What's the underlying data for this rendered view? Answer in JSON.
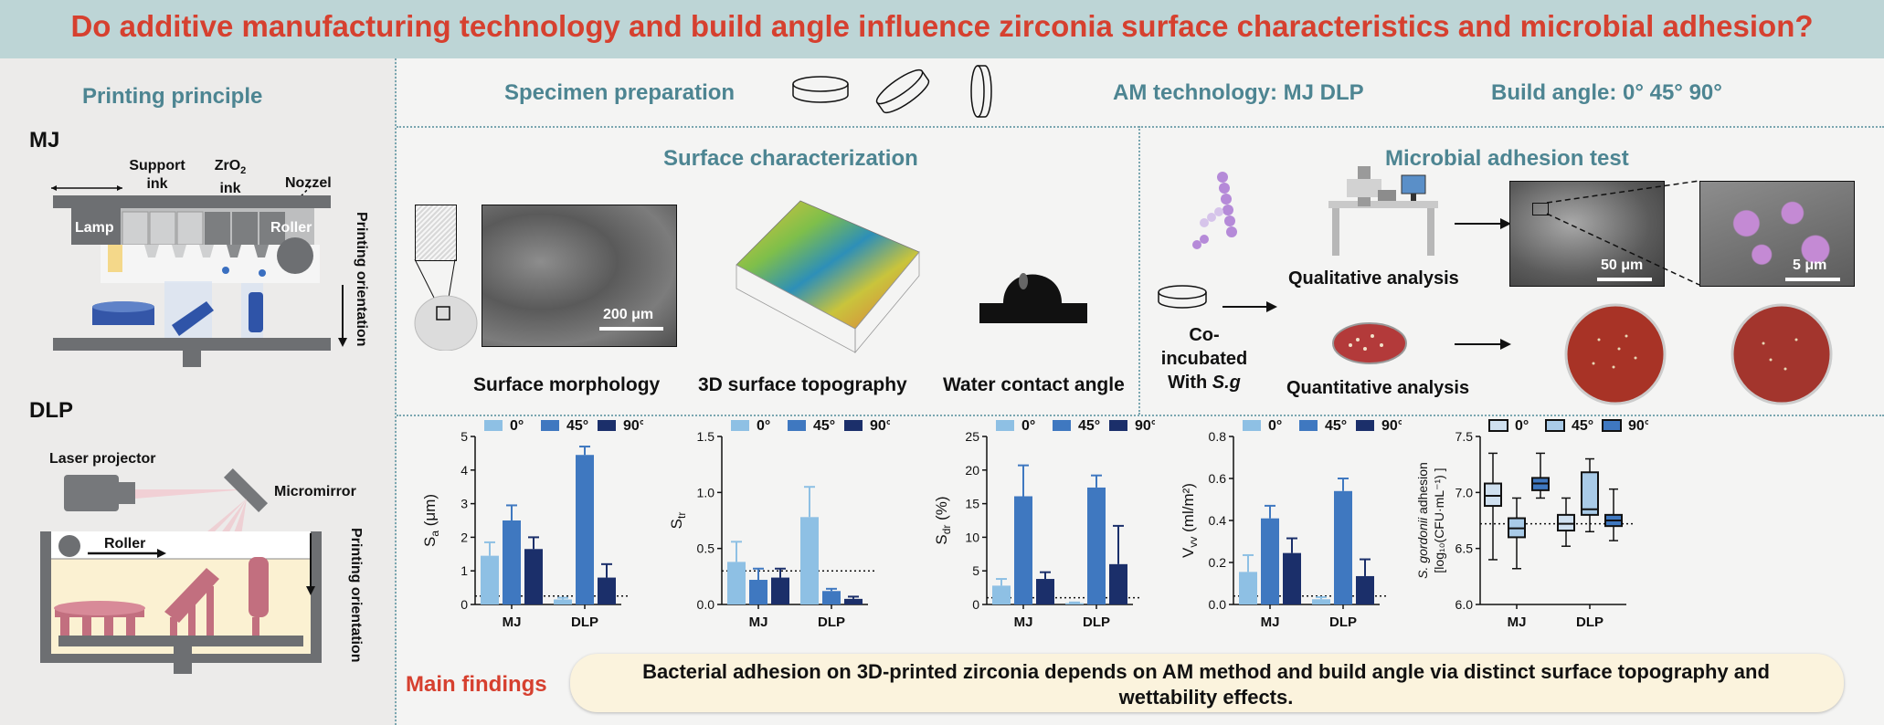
{
  "title": "Do additive manufacturing technology and build angle influence zirconia surface characteristics and microbial adhesion?",
  "left": {
    "printing_principle": "Printing principle",
    "mj": {
      "heading": "MJ",
      "support_ink": "Support ink",
      "zro2_ink": "ZrO",
      "zro2_sub": "2",
      "zro2_tail": " ink",
      "nozzel": "Nozzel",
      "lamp": "Lamp",
      "roller": "Roller",
      "orientation": "Printing orientation"
    },
    "dlp": {
      "heading": "DLP",
      "laser": "Laser projector",
      "micromirror": "Micromirror",
      "roller": "Roller",
      "orientation": "Printing orientation"
    }
  },
  "top": {
    "specimen": "Specimen preparation",
    "am_tech": "AM technology: MJ DLP",
    "build_angle": "Build angle: 0° 45° 90°"
  },
  "surface": {
    "heading": "Surface characterization",
    "scale": "200 μm",
    "morphology": "Surface morphology",
    "topography": "3D surface topography",
    "contact": "Water contact angle"
  },
  "microbial": {
    "heading": "Microbial adhesion test",
    "coinc_1": "Co-incubated",
    "coinc_2": "With ",
    "coinc_sg": "S.g",
    "qualitative": "Qualitative analysis",
    "quantitative": "Quantitative analysis",
    "scale_50": "50 μm",
    "scale_5": "5 μm"
  },
  "findings": {
    "label": "Main findings",
    "text": "Bacterial adhesion on 3D-printed zirconia depends on AM method and build angle via distinct surface topography and wettability effects."
  },
  "colors": {
    "title_red": "#d6402f",
    "teal": "#4d8592",
    "c0": "#8ec0e4",
    "c45": "#3f78c0",
    "c90": "#1b2f6a",
    "findings_bg": "#fbf3dd"
  },
  "chart_data": [
    {
      "type": "bar",
      "ylabel": "S",
      "ylabel_sub": "a",
      "ylabel_tail": " (μm)",
      "categories": [
        "MJ",
        "DLP"
      ],
      "legend": [
        "0°",
        "45°",
        "90°"
      ],
      "ylim": [
        0,
        5
      ],
      "yticks": [
        "0",
        "1",
        "2",
        "3",
        "4",
        "5"
      ],
      "reference_line": 0.25,
      "series": [
        {
          "name": "0°",
          "values": [
            1.45,
            0.15
          ],
          "err": [
            0.4,
            0.05
          ]
        },
        {
          "name": "45°",
          "values": [
            2.5,
            4.45
          ],
          "err": [
            0.45,
            0.25
          ]
        },
        {
          "name": "90°",
          "values": [
            1.65,
            0.8
          ],
          "err": [
            0.35,
            0.4
          ]
        }
      ]
    },
    {
      "type": "bar",
      "ylabel": "S",
      "ylabel_sub": "tr",
      "ylabel_tail": "",
      "categories": [
        "MJ",
        "DLP"
      ],
      "legend": [
        "0°",
        "45°",
        "90°"
      ],
      "ylim": [
        0,
        1.5
      ],
      "yticks": [
        "0.0",
        "0.5",
        "1.0",
        "1.5"
      ],
      "reference_line": 0.3,
      "series": [
        {
          "name": "0°",
          "values": [
            0.38,
            0.78
          ],
          "err": [
            0.18,
            0.27
          ]
        },
        {
          "name": "45°",
          "values": [
            0.22,
            0.12
          ],
          "err": [
            0.1,
            0.02
          ]
        },
        {
          "name": "90°",
          "values": [
            0.24,
            0.05
          ],
          "err": [
            0.08,
            0.02
          ]
        }
      ]
    },
    {
      "type": "bar",
      "ylabel": "S",
      "ylabel_sub": "dr",
      "ylabel_tail": " (%)",
      "categories": [
        "MJ",
        "DLP"
      ],
      "legend": [
        "0°",
        "45°",
        "90°"
      ],
      "ylim": [
        0,
        25
      ],
      "yticks": [
        "0",
        "5",
        "10",
        "15",
        "20",
        "25"
      ],
      "reference_line": 1,
      "series": [
        {
          "name": "0°",
          "values": [
            2.8,
            0.2
          ],
          "err": [
            1.0,
            0.1
          ]
        },
        {
          "name": "45°",
          "values": [
            16.1,
            17.4
          ],
          "err": [
            4.6,
            1.8
          ]
        },
        {
          "name": "90°",
          "values": [
            3.8,
            6.0
          ],
          "err": [
            1.0,
            5.7
          ]
        }
      ]
    },
    {
      "type": "bar",
      "ylabel": "V",
      "ylabel_sub": "vv",
      "ylabel_tail": " (ml/m²)",
      "categories": [
        "MJ",
        "DLP"
      ],
      "legend": [
        "0°",
        "45°",
        "90°"
      ],
      "ylim": [
        0,
        0.8
      ],
      "yticks": [
        "0.0",
        "0.2",
        "0.4",
        "0.6",
        "0.8"
      ],
      "reference_line": 0.04,
      "series": [
        {
          "name": "0°",
          "values": [
            0.155,
            0.025
          ],
          "err": [
            0.08,
            0.01
          ]
        },
        {
          "name": "45°",
          "values": [
            0.41,
            0.54
          ],
          "err": [
            0.06,
            0.06
          ]
        },
        {
          "name": "90°",
          "values": [
            0.245,
            0.135
          ],
          "err": [
            0.07,
            0.08
          ]
        }
      ]
    },
    {
      "type": "box",
      "ylabel_1": "S. gordonii",
      "ylabel_1_tail": " adhesion",
      "ylabel_2": "[log₁₀(CFU·mL⁻¹) ]",
      "categories": [
        "MJ",
        "DLP"
      ],
      "legend": [
        "0°",
        "45°",
        "90°"
      ],
      "ylim": [
        6.0,
        7.5
      ],
      "yticks": [
        "6.0",
        "6.5",
        "7.0",
        "7.5"
      ],
      "reference_line": 6.72,
      "series": [
        {
          "name": "0°",
          "boxes": [
            [
              6.4,
              6.88,
              6.97,
              7.08,
              7.35
            ],
            [
              6.52,
              6.66,
              6.72,
              6.8,
              6.95
            ]
          ]
        },
        {
          "name": "45°",
          "boxes": [
            [
              6.32,
              6.6,
              6.68,
              6.77,
              6.95
            ],
            [
              6.65,
              6.8,
              6.85,
              7.18,
              7.3
            ]
          ]
        },
        {
          "name": "90°",
          "boxes": [
            [
              6.95,
              7.02,
              7.08,
              7.13,
              7.35
            ],
            [
              6.57,
              6.7,
              6.75,
              6.8,
              7.03
            ]
          ]
        }
      ]
    }
  ]
}
